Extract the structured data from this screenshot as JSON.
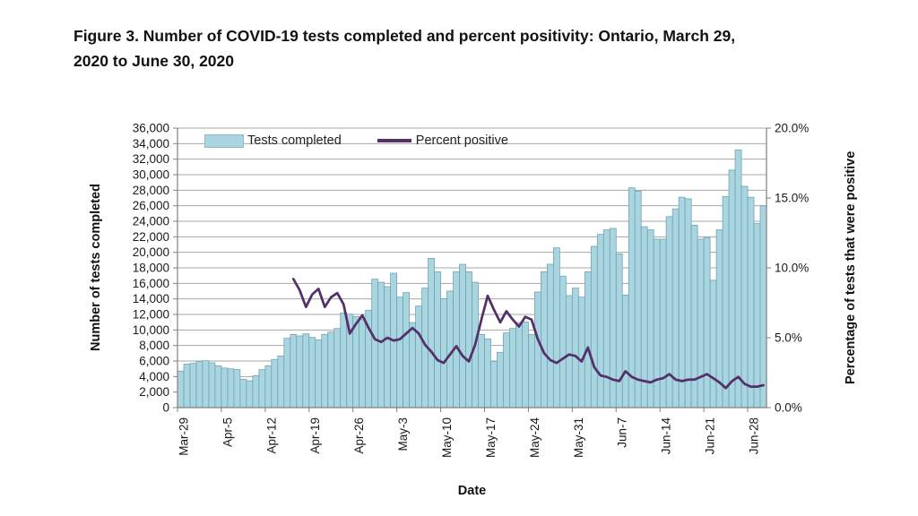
{
  "figure": {
    "title_line1": "Figure 3. Number of COVID-19 tests completed and percent positivity: Ontario, March 29,",
    "title_line2": "2020 to June 30, 2020"
  },
  "chart_data": {
    "type": "combo bar+line",
    "title": "Figure 3. Number of COVID-19 tests completed and percent positivity: Ontario, March 29, 2020 to June 30, 2020",
    "grid": true,
    "legend_position": "top-left inside plot",
    "colors": {
      "bar_fill": "#a9d5e0",
      "bar_border": "#6d9fae",
      "line": "#533069",
      "gridline": "#a6a6a6",
      "axis": "#808080"
    },
    "x_axis": {
      "title": "Date",
      "ticks": [
        "Mar-29",
        "Apr-5",
        "Apr-12",
        "Apr-19",
        "Apr-26",
        "May-3",
        "May-10",
        "May-17",
        "May-24",
        "May-31",
        "Jun-7",
        "Jun-14",
        "Jun-21",
        "Jun-28"
      ]
    },
    "y_axis_left": {
      "title": "Number of tests completed",
      "min": 0,
      "max": 36000,
      "step": 2000,
      "ticks": [
        "0",
        "2,000",
        "4,000",
        "6,000",
        "8,000",
        "10,000",
        "12,000",
        "14,000",
        "16,000",
        "18,000",
        "20,000",
        "22,000",
        "24,000",
        "26,000",
        "28,000",
        "30,000",
        "32,000",
        "34,000",
        "36,000"
      ]
    },
    "y_axis_right": {
      "title": "Percentage of tests that were positive",
      "min": 0,
      "max": 20,
      "step": 5,
      "ticks": [
        "0.0%",
        "5.0%",
        "10.0%",
        "15.0%",
        "20.0%"
      ]
    },
    "legend": {
      "items": [
        {
          "label": "Tests completed",
          "kind": "bar",
          "color": "#a9d5e0"
        },
        {
          "label": "Percent positive",
          "kind": "line",
          "color": "#533069"
        }
      ]
    },
    "x": [
      "Mar-29",
      "Mar-30",
      "Mar-31",
      "Apr-1",
      "Apr-2",
      "Apr-3",
      "Apr-4",
      "Apr-5",
      "Apr-6",
      "Apr-7",
      "Apr-8",
      "Apr-9",
      "Apr-10",
      "Apr-11",
      "Apr-12",
      "Apr-13",
      "Apr-14",
      "Apr-15",
      "Apr-16",
      "Apr-17",
      "Apr-18",
      "Apr-19",
      "Apr-20",
      "Apr-21",
      "Apr-22",
      "Apr-23",
      "Apr-24",
      "Apr-25",
      "Apr-26",
      "Apr-27",
      "Apr-28",
      "Apr-29",
      "Apr-30",
      "May-1",
      "May-2",
      "May-3",
      "May-4",
      "May-5",
      "May-6",
      "May-7",
      "May-8",
      "May-9",
      "May-10",
      "May-11",
      "May-12",
      "May-13",
      "May-14",
      "May-15",
      "May-16",
      "May-17",
      "May-18",
      "May-19",
      "May-20",
      "May-21",
      "May-22",
      "May-23",
      "May-24",
      "May-25",
      "May-26",
      "May-27",
      "May-28",
      "May-29",
      "May-30",
      "May-31",
      "Jun-1",
      "Jun-2",
      "Jun-3",
      "Jun-4",
      "Jun-5",
      "Jun-6",
      "Jun-7",
      "Jun-8",
      "Jun-9",
      "Jun-10",
      "Jun-11",
      "Jun-12",
      "Jun-13",
      "Jun-14",
      "Jun-15",
      "Jun-16",
      "Jun-17",
      "Jun-18",
      "Jun-19",
      "Jun-20",
      "Jun-21",
      "Jun-22",
      "Jun-23",
      "Jun-24",
      "Jun-25",
      "Jun-26",
      "Jun-27",
      "Jun-28",
      "Jun-29",
      "Jun-30"
    ],
    "series": [
      {
        "name": "Tests completed",
        "kind": "bar",
        "axis": "left",
        "values": [
          4700,
          5600,
          5700,
          5960,
          6040,
          5770,
          5390,
          5100,
          5000,
          4890,
          3650,
          3460,
          4120,
          4890,
          5400,
          6200,
          6650,
          8920,
          9420,
          9230,
          9500,
          9040,
          8730,
          9420,
          9730,
          10190,
          12190,
          12040,
          11730,
          11350,
          12550,
          16540,
          16150,
          15580,
          17310,
          14230,
          14810,
          10960,
          13080,
          15390,
          19230,
          17500,
          14040,
          15000,
          17500,
          18460,
          17500,
          16150,
          9420,
          8850,
          5960,
          7120,
          9620,
          10190,
          10960,
          11040,
          9420,
          14890,
          17500,
          18470,
          20580,
          16930,
          14420,
          15390,
          14230,
          17500,
          20770,
          22310,
          22890,
          23080,
          19810,
          14500,
          28300,
          27900,
          23300,
          22900,
          21700,
          21700,
          24600,
          25600,
          27100,
          26900,
          23500,
          21700,
          21900,
          16400,
          22900,
          27200,
          30600,
          33200,
          28500,
          27100,
          23700,
          26000
        ]
      },
      {
        "name": "Percent positive",
        "kind": "line",
        "axis": "right",
        "values": [
          null,
          null,
          null,
          null,
          null,
          null,
          null,
          null,
          null,
          null,
          null,
          null,
          null,
          null,
          null,
          null,
          null,
          null,
          9.2,
          8.4,
          7.2,
          8.1,
          8.5,
          7.2,
          7.9,
          8.2,
          7.4,
          5.3,
          6.0,
          6.6,
          5.7,
          4.9,
          4.7,
          5.0,
          4.8,
          4.9,
          5.3,
          5.7,
          5.3,
          4.5,
          4.0,
          3.4,
          3.2,
          3.8,
          4.4,
          3.7,
          3.3,
          4.5,
          6.3,
          8.0,
          7.0,
          6.1,
          6.9,
          6.3,
          5.8,
          6.5,
          6.3,
          4.9,
          3.9,
          3.4,
          3.2,
          3.5,
          3.8,
          3.7,
          3.3,
          4.3,
          2.9,
          2.3,
          2.2,
          2.0,
          1.9,
          2.6,
          2.2,
          2.0,
          1.9,
          1.8,
          2.0,
          2.1,
          2.4,
          2.0,
          1.9,
          2.0,
          2.0,
          2.2,
          2.4,
          2.1,
          1.8,
          1.4,
          1.9,
          2.2,
          1.7,
          1.5,
          1.5,
          1.6
        ]
      }
    ]
  }
}
